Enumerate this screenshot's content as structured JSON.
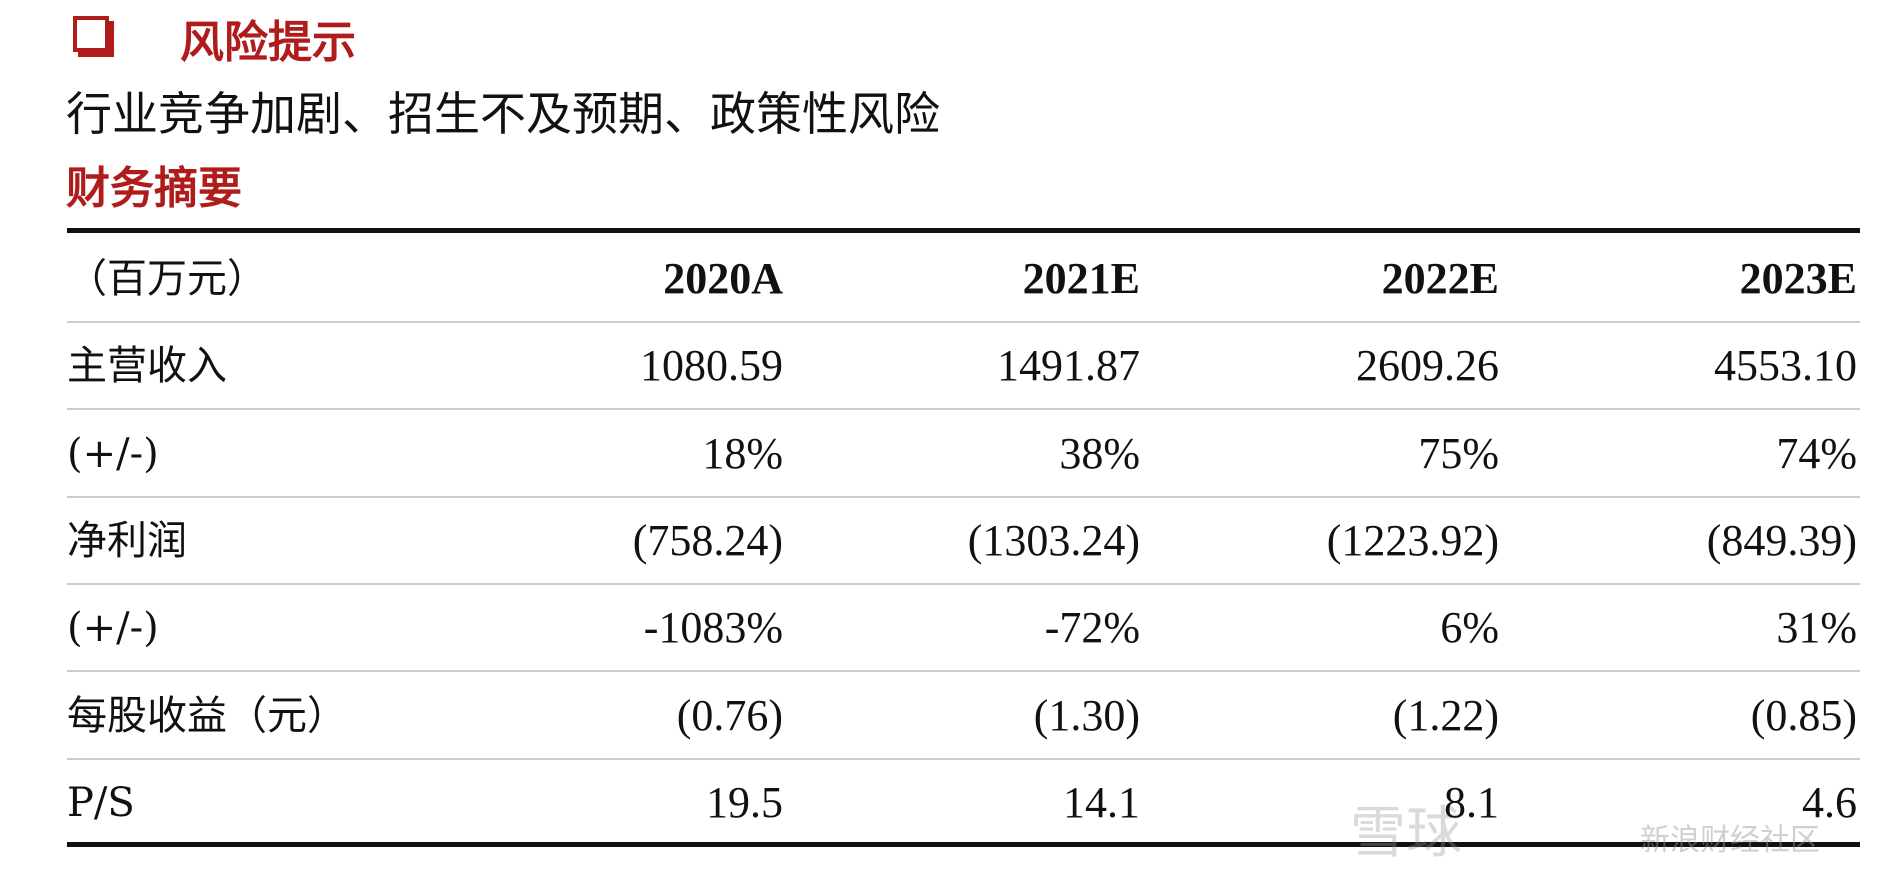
{
  "header": {
    "title": "风险提示",
    "risks": "行业竞争加剧、招生不及预期、政策性风险"
  },
  "section_title": "财务摘要",
  "table": {
    "columns": [
      "（百万元）",
      "2020A",
      "2021E",
      "2022E",
      "2023E"
    ],
    "rows": [
      [
        "主营收入",
        "1080.59",
        "1491.87",
        "2609.26",
        "4553.10"
      ],
      [
        "(+/-)",
        "18%",
        "38%",
        "75%",
        "74%"
      ],
      [
        "净利润",
        "(758.24)",
        "(1303.24)",
        "(1223.92)",
        "(849.39)"
      ],
      [
        "(+/-)",
        "-1083%",
        "-72%",
        "6%",
        "31%"
      ],
      [
        "每股收益（元）",
        "(0.76)",
        "(1.30)",
        "(1.22)",
        "(0.85)"
      ],
      [
        "P/S",
        "19.5",
        "14.1",
        "8.1",
        "4.6"
      ]
    ]
  },
  "watermark": [
    "雪球",
    "新浪财经社区"
  ]
}
